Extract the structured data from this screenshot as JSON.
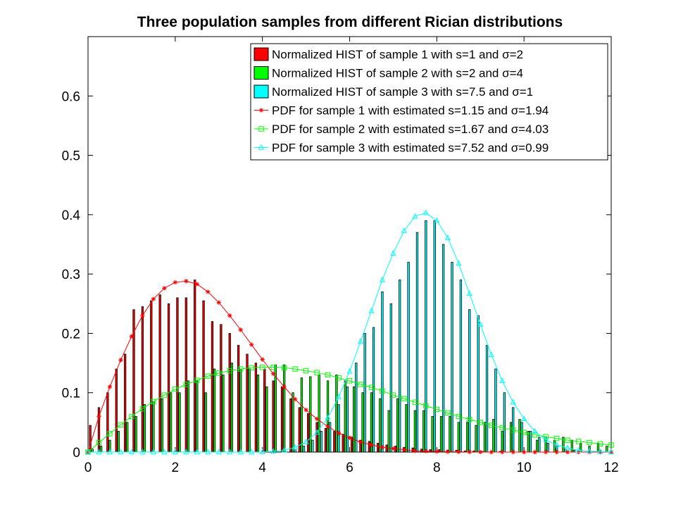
{
  "chart_data": {
    "type": "bar",
    "title": "Three population samples from different Rician distributions",
    "xlabel": "",
    "ylabel": "",
    "xlim": [
      0,
      12
    ],
    "ylim": [
      0,
      0.7
    ],
    "xticks": [
      0,
      2,
      4,
      6,
      8,
      10,
      12
    ],
    "yticks": [
      0,
      0.1,
      0.2,
      0.3,
      0.4,
      0.5,
      0.6
    ],
    "grid": false,
    "legend_position": "top-right",
    "bin_width": 0.2,
    "bar_series": [
      {
        "name": "Normalized HIST of sample 1 with s=1 and σ=2",
        "color": "#ff0000",
        "x": [
          0.1,
          0.3,
          0.5,
          0.7,
          0.9,
          1.1,
          1.3,
          1.5,
          1.7,
          1.9,
          2.1,
          2.3,
          2.5,
          2.7,
          2.9,
          3.1,
          3.3,
          3.5,
          3.7,
          3.9,
          4.1,
          4.3,
          4.5,
          4.7,
          4.9,
          5.1,
          5.3,
          5.5,
          5.7,
          5.9,
          6.1,
          6.3,
          6.5,
          6.7,
          6.9,
          7.1,
          7.3,
          7.5,
          7.7,
          7.9,
          8.1,
          8.3,
          8.5,
          8.7,
          8.9,
          9.1,
          9.3,
          9.5
        ],
        "values": [
          0.045,
          0.075,
          0.1,
          0.14,
          0.165,
          0.24,
          0.245,
          0.255,
          0.265,
          0.25,
          0.26,
          0.26,
          0.29,
          0.255,
          0.22,
          0.215,
          0.2,
          0.18,
          0.165,
          0.15,
          0.14,
          0.12,
          0.11,
          0.09,
          0.075,
          0.065,
          0.05,
          0.04,
          0.035,
          0.03,
          0.025,
          0.02,
          0.018,
          0.015,
          0.012,
          0.01,
          0.008,
          0.007,
          0.005,
          0.004,
          0.004,
          0.003,
          0.003,
          0.002,
          0.002,
          0.001,
          0.001,
          0.001
        ]
      },
      {
        "name": "Normalized HIST of sample 2 with s=2 and σ=4",
        "color": "#00ff00",
        "x": [
          0.1,
          0.3,
          0.5,
          0.7,
          0.9,
          1.1,
          1.3,
          1.5,
          1.7,
          1.9,
          2.1,
          2.3,
          2.5,
          2.7,
          2.9,
          3.1,
          3.3,
          3.5,
          3.7,
          3.9,
          4.1,
          4.3,
          4.5,
          4.7,
          4.9,
          5.1,
          5.3,
          5.5,
          5.7,
          5.9,
          6.1,
          6.3,
          6.5,
          6.7,
          6.9,
          7.1,
          7.3,
          7.5,
          7.7,
          7.9,
          8.1,
          8.3,
          8.5,
          8.7,
          8.9,
          9.1,
          9.3,
          9.5,
          9.7,
          9.9,
          10.1,
          10.3,
          10.5,
          10.7,
          10.9,
          11.1,
          11.3,
          11.5,
          11.7,
          11.9
        ],
        "values": [
          0.005,
          0.01,
          0.02,
          0.035,
          0.05,
          0.06,
          0.08,
          0.085,
          0.09,
          0.1,
          0.1,
          0.12,
          0.12,
          0.1,
          0.14,
          0.13,
          0.15,
          0.14,
          0.14,
          0.13,
          0.11,
          0.147,
          0.147,
          0.1,
          0.125,
          0.127,
          0.13,
          0.12,
          0.13,
          0.12,
          0.11,
          0.1,
          0.1,
          0.09,
          0.07,
          0.09,
          0.08,
          0.07,
          0.07,
          0.06,
          0.06,
          0.06,
          0.05,
          0.05,
          0.045,
          0.05,
          0.055,
          0.035,
          0.05,
          0.055,
          0.035,
          0.02,
          0.025,
          0.02,
          0.025,
          0.02,
          0.015,
          0.01,
          0.015,
          0.01
        ]
      },
      {
        "name": "Normalized HIST of sample 3 with s=7.5 and σ=1",
        "color": "#00ffff",
        "x": [
          4.7,
          4.9,
          5.1,
          5.3,
          5.5,
          5.7,
          5.9,
          6.1,
          6.3,
          6.5,
          6.7,
          6.9,
          7.1,
          7.3,
          7.5,
          7.7,
          7.9,
          8.1,
          8.3,
          8.5,
          8.7,
          8.9,
          9.1,
          9.3,
          9.5,
          9.7,
          9.9,
          10.1,
          10.3,
          10.5,
          10.7,
          10.9,
          11.1
        ],
        "values": [
          0.005,
          0.01,
          0.02,
          0.035,
          0.05,
          0.08,
          0.11,
          0.15,
          0.2,
          0.21,
          0.27,
          0.25,
          0.29,
          0.32,
          0.37,
          0.39,
          0.39,
          0.35,
          0.32,
          0.29,
          0.24,
          0.23,
          0.18,
          0.14,
          0.1,
          0.075,
          0.05,
          0.035,
          0.025,
          0.015,
          0.01,
          0.005,
          0.003
        ]
      }
    ],
    "line_series": [
      {
        "name": "PDF for sample 1 with estimated s=1.15 and σ=1.94",
        "color": "#ff0000",
        "marker": "star",
        "x": [
          0,
          0.25,
          0.5,
          0.75,
          1,
          1.25,
          1.5,
          1.75,
          2,
          2.25,
          2.5,
          2.75,
          3,
          3.25,
          3.5,
          3.75,
          4,
          4.25,
          4.5,
          4.75,
          5,
          5.25,
          5.5,
          5.75,
          6,
          6.25,
          6.5,
          6.75,
          7,
          7.25,
          7.5,
          7.75,
          8,
          8.25,
          8.5,
          8.75,
          9,
          9.25,
          9.5,
          9.75,
          10,
          10.25,
          10.5,
          10.75,
          11,
          11.25,
          11.5,
          11.75,
          12
        ],
        "values": [
          0,
          0.06,
          0.11,
          0.155,
          0.195,
          0.23,
          0.258,
          0.276,
          0.286,
          0.288,
          0.283,
          0.27,
          0.252,
          0.23,
          0.206,
          0.181,
          0.156,
          0.132,
          0.11,
          0.089,
          0.071,
          0.056,
          0.043,
          0.032,
          0.024,
          0.017,
          0.012,
          0.008,
          0.006,
          0.004,
          0.002,
          0.0015,
          0.001,
          0.0007,
          0.0004,
          0.0002,
          0.0001,
          0,
          0,
          0,
          0,
          0,
          0,
          0,
          0,
          0,
          0,
          0,
          0
        ]
      },
      {
        "name": "PDF for sample 2 with estimated s=1.67 and σ=4.03",
        "color": "#00ff00",
        "marker": "square",
        "x": [
          0,
          0.25,
          0.5,
          0.75,
          1,
          1.25,
          1.5,
          1.75,
          2,
          2.25,
          2.5,
          2.75,
          3,
          3.25,
          3.5,
          3.75,
          4,
          4.25,
          4.5,
          4.75,
          5,
          5.25,
          5.5,
          5.75,
          6,
          6.25,
          6.5,
          6.75,
          7,
          7.25,
          7.5,
          7.75,
          8,
          8.25,
          8.5,
          8.75,
          9,
          9.25,
          9.5,
          9.75,
          10,
          10.25,
          10.5,
          10.75,
          11,
          11.25,
          11.5,
          11.75,
          12
        ],
        "values": [
          0,
          0.016,
          0.031,
          0.046,
          0.06,
          0.073,
          0.085,
          0.096,
          0.106,
          0.114,
          0.121,
          0.128,
          0.133,
          0.137,
          0.14,
          0.142,
          0.143,
          0.143,
          0.142,
          0.14,
          0.137,
          0.134,
          0.13,
          0.125,
          0.12,
          0.114,
          0.109,
          0.103,
          0.096,
          0.09,
          0.084,
          0.078,
          0.072,
          0.066,
          0.06,
          0.055,
          0.05,
          0.045,
          0.041,
          0.037,
          0.033,
          0.029,
          0.026,
          0.023,
          0.02,
          0.018,
          0.016,
          0.014,
          0.012
        ]
      },
      {
        "name": "PDF for sample 3 with estimated s=7.52 and σ=0.99",
        "color": "#00ffff",
        "marker": "triangle",
        "x": [
          0,
          0.25,
          0.5,
          0.75,
          1,
          1.25,
          1.5,
          1.75,
          2,
          2.25,
          2.5,
          2.75,
          3,
          3.25,
          3.5,
          3.75,
          4,
          4.25,
          4.5,
          4.75,
          5,
          5.25,
          5.5,
          5.75,
          6,
          6.25,
          6.5,
          6.75,
          7,
          7.25,
          7.5,
          7.75,
          8,
          8.25,
          8.5,
          8.75,
          9,
          9.25,
          9.5,
          9.75,
          10,
          10.25,
          10.5,
          10.75,
          11,
          11.25,
          11.5,
          11.75,
          12
        ],
        "values": [
          0,
          0,
          0,
          0,
          0,
          0,
          0,
          0,
          0,
          0,
          0,
          0,
          0,
          0,
          0,
          0,
          0.0002,
          0.001,
          0.003,
          0.008,
          0.017,
          0.033,
          0.058,
          0.093,
          0.136,
          0.186,
          0.238,
          0.29,
          0.335,
          0.373,
          0.397,
          0.403,
          0.39,
          0.361,
          0.318,
          0.267,
          0.215,
          0.164,
          0.12,
          0.084,
          0.056,
          0.035,
          0.021,
          0.012,
          0.007,
          0.003,
          0.0015,
          0.0007,
          0.0003
        ]
      }
    ]
  }
}
